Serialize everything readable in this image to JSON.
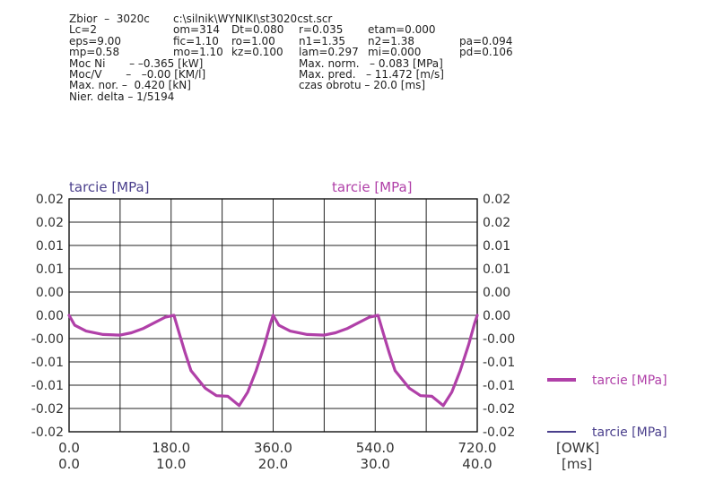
{
  "header": {
    "lines": [
      [
        {
          "text": "Zbior  –  3020c",
          "col": 0
        },
        {
          "text": "c:\\silnik\\WYNIKI\\st3020cst.scr",
          "col": 1
        }
      ],
      [
        {
          "text": "Lc=2",
          "col": 0
        },
        {
          "text": "om=314",
          "col": 1
        },
        {
          "text": "Dt=0.080",
          "col": 2
        },
        {
          "text": "r=0.035",
          "col": 3
        },
        {
          "text": "etam=0.000",
          "col": 4
        }
      ],
      [
        {
          "text": "eps=9.00",
          "col": 0
        },
        {
          "text": "fic=1.10",
          "col": 1
        },
        {
          "text": "ro=1.00",
          "col": 2
        },
        {
          "text": "n1=1.35",
          "col": 3
        },
        {
          "text": "n2=1.38",
          "col": 4
        },
        {
          "text": "pa=0.094",
          "col": 5
        }
      ],
      [
        {
          "text": "mp=0.58",
          "col": 0
        },
        {
          "text": "mo=1.10",
          "col": 1
        },
        {
          "text": "kz=0.100",
          "col": 2
        },
        {
          "text": "lam=0.297",
          "col": 3
        },
        {
          "text": "mi=0.000",
          "col": 4
        },
        {
          "text": "pd=0.106",
          "col": 5
        }
      ],
      [
        {
          "text": "Moc Ni       – –0.365 [kW]",
          "col": 0
        },
        {
          "text": "Max. norm.   – 0.083 [MPa]",
          "col": 3
        }
      ],
      [
        {
          "text": "Moc/V       –   –0.00 [KM/l]",
          "col": 0
        },
        {
          "text": "Max. pred.   – 11.472 [m/s]",
          "col": 3
        }
      ],
      [
        {
          "text": "Max. nor. –  0.420 [kN]",
          "col": 0
        },
        {
          "text": "czas obrotu – 20.0 [ms]",
          "col": 3
        }
      ],
      [
        {
          "text": "Nier. delta – 1/5194",
          "col": 0
        }
      ]
    ]
  },
  "chart_data": {
    "type": "line",
    "left_axis_title": "tarcie [MPa]",
    "right_axis_title": "tarcie [MPa]",
    "y_tick_labels": [
      "0.02",
      "0.02",
      "0.01",
      "0.01",
      "0.00",
      "0.00",
      "-0.00",
      "-0.01",
      "-0.01",
      "-0.02",
      "-0.02"
    ],
    "ylim": [
      -0.02,
      0.02
    ],
    "x_tick_labels_deg": [
      "0.0",
      "180.0",
      "360.0",
      "540.0",
      "720.0"
    ],
    "x_tick_labels_ms": [
      "0.0",
      "10.0",
      "20.0",
      "30.0",
      "40.0"
    ],
    "x_unit_deg": "[OWK]",
    "x_unit_ms": "[ms]",
    "xlim": [
      0,
      720
    ],
    "grid": true,
    "series": [
      {
        "name": "tarcie [MPa]",
        "color": "#b040a8",
        "x": [
          0,
          10,
          30,
          60,
          90,
          110,
          130,
          150,
          170,
          185,
          195,
          205,
          215,
          240,
          260,
          280,
          300,
          315,
          330,
          345,
          355,
          360,
          370,
          390,
          420,
          450,
          470,
          490,
          510,
          530,
          545,
          555,
          565,
          575,
          600,
          620,
          640,
          660,
          675,
          690,
          705,
          715,
          720
        ],
        "y": [
          0.0,
          -0.0017,
          -0.0027,
          -0.0033,
          -0.0034,
          -0.003,
          -0.0023,
          -0.0013,
          -0.0003,
          0.0,
          -0.0033,
          -0.0065,
          -0.0095,
          -0.0125,
          -0.0138,
          -0.0139,
          -0.0155,
          -0.0132,
          -0.0095,
          -0.005,
          -0.0015,
          0.0,
          -0.0017,
          -0.0027,
          -0.0033,
          -0.0034,
          -0.003,
          -0.0023,
          -0.0013,
          -0.0003,
          0.0,
          -0.0033,
          -0.0065,
          -0.0095,
          -0.0125,
          -0.0138,
          -0.0139,
          -0.0155,
          -0.0132,
          -0.0095,
          -0.005,
          -0.0015,
          0.0
        ]
      }
    ],
    "legend": [
      {
        "label": "tarcie [MPa]",
        "color": "#b040a8"
      },
      {
        "label": "tarcie [MPa]",
        "color": "#4a3f8c"
      }
    ]
  },
  "colors": {
    "left_axis_title": "#4a3f8c",
    "right_axis_title": "#b040a8",
    "grid": "#222222",
    "line": "#b040a8"
  }
}
